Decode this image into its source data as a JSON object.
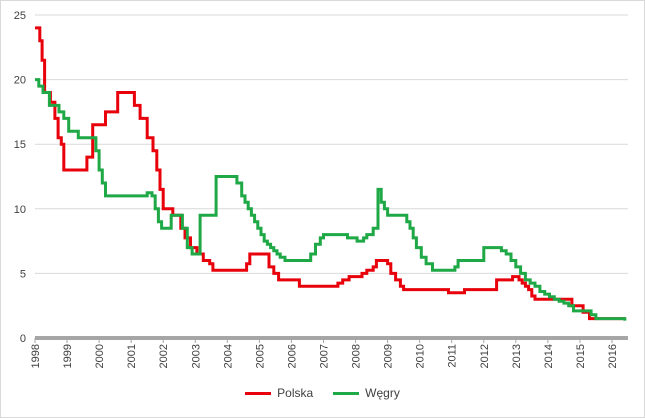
{
  "chart_data": {
    "type": "line",
    "title": "",
    "xlabel": "",
    "ylabel": "",
    "xlim": [
      1998,
      2016.5
    ],
    "ylim": [
      0,
      25
    ],
    "y_ticks": [
      "0",
      "5",
      "10",
      "15",
      "20",
      "25"
    ],
    "x_ticks": [
      "1998",
      "1999",
      "2000",
      "2001",
      "2002",
      "2003",
      "2004",
      "2005",
      "2006",
      "2007",
      "2008",
      "2009",
      "2010",
      "2011",
      "2012",
      "2013",
      "2014",
      "2015",
      "2016"
    ],
    "grid": "horizontal",
    "legend_position": "bottom",
    "series": [
      {
        "name": "Polska",
        "color": "#e8000b",
        "step": true,
        "x": [
          1998.0,
          1998.15,
          1998.22,
          1998.3,
          1998.48,
          1998.62,
          1998.72,
          1998.82,
          1998.9,
          1999.5,
          1999.62,
          1999.8,
          2000.2,
          2000.58,
          2001.1,
          2001.28,
          2001.5,
          2001.68,
          2001.8,
          2001.9,
          2002.0,
          2002.12,
          2002.3,
          2002.55,
          2002.68,
          2002.85,
          2003.05,
          2003.25,
          2003.45,
          2003.55,
          2004.5,
          2004.6,
          2004.7,
          2005.2,
          2005.3,
          2005.45,
          2005.6,
          2006.1,
          2006.25,
          2007.3,
          2007.45,
          2007.6,
          2007.8,
          2008.05,
          2008.2,
          2008.35,
          2008.55,
          2008.65,
          2008.85,
          2009.0,
          2009.1,
          2009.25,
          2009.4,
          2009.5,
          2010.9,
          2011.05,
          2011.2,
          2011.4,
          2012.4,
          2012.8,
          2012.9,
          2013.0,
          2013.1,
          2013.2,
          2013.3,
          2013.4,
          2013.5,
          2013.6,
          2014.75,
          2014.8,
          2015.1,
          2015.2,
          2015.3,
          2016.4
        ],
        "y": [
          24.0,
          23.0,
          21.5,
          19.0,
          18.25,
          17.0,
          15.5,
          15.0,
          13.0,
          13.0,
          14.0,
          16.5,
          17.5,
          19.0,
          18.0,
          17.0,
          15.5,
          14.5,
          13.0,
          11.5,
          10.0,
          10.0,
          9.5,
          8.5,
          7.75,
          7.0,
          6.5,
          6.0,
          5.75,
          5.25,
          5.25,
          5.75,
          6.5,
          6.5,
          5.5,
          5.0,
          4.5,
          4.5,
          4.0,
          4.0,
          4.25,
          4.5,
          4.75,
          4.75,
          5.0,
          5.25,
          5.5,
          6.0,
          6.0,
          5.75,
          5.0,
          4.5,
          4.0,
          3.75,
          3.5,
          3.5,
          3.5,
          3.75,
          4.5,
          4.5,
          4.75,
          4.75,
          4.5,
          4.25,
          4.0,
          3.75,
          3.25,
          3.0,
          2.5,
          2.5,
          2.0,
          2.0,
          1.5,
          1.5
        ]
      },
      {
        "name": "Węgry",
        "color": "#1fa846",
        "step": true,
        "x": [
          1998.0,
          1998.12,
          1998.25,
          1998.45,
          1998.75,
          1998.9,
          1999.05,
          1999.35,
          1999.8,
          1999.9,
          2000.0,
          2000.1,
          2000.2,
          2000.35,
          2001.5,
          2001.65,
          2001.75,
          2001.85,
          2001.95,
          2002.05,
          2002.25,
          2002.6,
          2002.75,
          2002.9,
          2003.0,
          2003.15,
          2003.5,
          2003.65,
          2003.9,
          2004.3,
          2004.45,
          2004.55,
          2004.65,
          2004.75,
          2004.85,
          2004.95,
          2005.05,
          2005.15,
          2005.25,
          2005.35,
          2005.45,
          2005.55,
          2005.65,
          2005.8,
          2005.95,
          2006.0,
          2006.6,
          2006.75,
          2006.9,
          2007.0,
          2007.6,
          2007.75,
          2008.0,
          2008.05,
          2008.25,
          2008.35,
          2008.55,
          2008.7,
          2008.8,
          2008.9,
          2009.0,
          2009.5,
          2009.6,
          2009.7,
          2009.8,
          2009.9,
          2010.05,
          2010.2,
          2010.4,
          2011.0,
          2011.1,
          2011.2,
          2011.5,
          2011.7,
          2012.0,
          2012.55,
          2012.7,
          2012.85,
          2013.0,
          2013.15,
          2013.3,
          2013.45,
          2013.6,
          2013.75,
          2013.9,
          2014.05,
          2014.2,
          2014.35,
          2014.5,
          2014.65,
          2014.8,
          2015.2,
          2015.35,
          2015.5,
          2016.4
        ],
        "y": [
          20.0,
          19.5,
          19.0,
          18.0,
          17.5,
          17.0,
          16.0,
          15.5,
          15.5,
          14.5,
          13.0,
          12.0,
          11.0,
          11.0,
          11.25,
          11.0,
          10.0,
          9.0,
          8.5,
          8.5,
          9.5,
          8.5,
          7.0,
          6.5,
          6.5,
          9.5,
          9.5,
          12.5,
          12.5,
          12.0,
          11.0,
          10.5,
          10.0,
          9.5,
          9.0,
          8.5,
          8.0,
          7.5,
          7.25,
          7.0,
          6.75,
          6.5,
          6.25,
          6.0,
          6.0,
          6.0,
          6.5,
          7.25,
          7.75,
          8.0,
          8.0,
          7.75,
          7.75,
          7.5,
          7.75,
          8.0,
          8.5,
          11.5,
          10.5,
          10.0,
          9.5,
          9.5,
          9.0,
          8.5,
          7.75,
          7.0,
          6.25,
          5.75,
          5.25,
          5.25,
          5.5,
          6.0,
          6.0,
          6.0,
          7.0,
          6.75,
          6.5,
          6.0,
          5.5,
          5.0,
          4.5,
          4.25,
          4.0,
          3.6,
          3.4,
          3.2,
          3.0,
          2.85,
          2.7,
          2.5,
          2.1,
          2.1,
          1.8,
          1.5,
          1.35
        ]
      }
    ]
  }
}
